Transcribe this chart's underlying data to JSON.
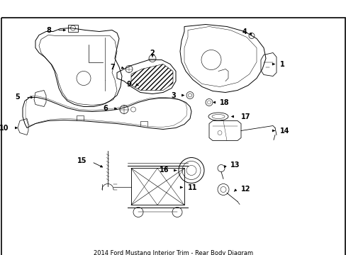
{
  "title": "2014 Ford Mustang Interior Trim - Rear Body Diagram",
  "bg_color": "#ffffff",
  "border_color": "#000000",
  "text_color": "#000000",
  "fig_width": 4.89,
  "fig_height": 3.6,
  "dpi": 100
}
